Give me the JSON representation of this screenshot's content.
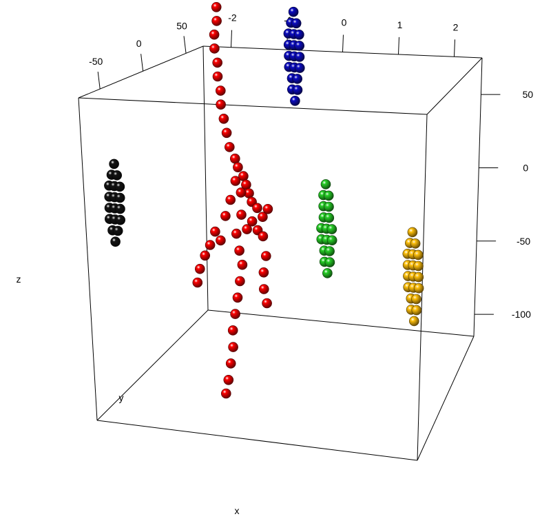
{
  "chart_data": {
    "type": "scatter",
    "dimensions": "3d",
    "title": "",
    "axes": {
      "x": {
        "label": "x",
        "ticks": [
          -2,
          -1,
          0,
          1,
          2
        ]
      },
      "y": {
        "label": "y",
        "ticks": [
          -50,
          0,
          50
        ]
      },
      "z": {
        "label": "z",
        "ticks": [
          50,
          0,
          -50,
          -100
        ]
      }
    },
    "grid": false,
    "legend": "none",
    "series": [
      {
        "color": "#dd0000",
        "shape": "sphere",
        "points": [
          [
            -1.9,
            47,
            118
          ],
          [
            -1.9,
            47,
            108
          ],
          [
            -1.95,
            47,
            98
          ],
          [
            -1.95,
            47,
            88
          ],
          [
            -1.9,
            47,
            78
          ],
          [
            -1.9,
            47,
            68
          ],
          [
            -1.85,
            47,
            58
          ],
          [
            -1.85,
            47,
            48
          ],
          [
            -1.8,
            47,
            38
          ],
          [
            -1.75,
            47,
            28
          ],
          [
            -1.7,
            47,
            18
          ],
          [
            -1.6,
            47,
            10
          ],
          [
            -1.55,
            47,
            4
          ],
          [
            -1.45,
            47,
            -2
          ],
          [
            -1.4,
            47,
            -8
          ],
          [
            -1.35,
            47,
            -14
          ],
          [
            -1.3,
            47,
            -20
          ],
          [
            -1.5,
            47,
            -14
          ],
          [
            -1.6,
            47,
            -6
          ],
          [
            -1.7,
            47,
            -20
          ],
          [
            -1.8,
            47,
            -32
          ],
          [
            -1.5,
            47,
            -30
          ],
          [
            -1.4,
            47,
            -40
          ],
          [
            -1.3,
            47,
            -34
          ],
          [
            -1.2,
            47,
            -24
          ],
          [
            -1.2,
            47,
            -40
          ],
          [
            -1.1,
            47,
            -30
          ],
          [
            -1.0,
            47,
            -24
          ],
          [
            -1.6,
            47,
            -44
          ],
          [
            -2.0,
            47,
            -44
          ],
          [
            -2.1,
            47,
            -54
          ],
          [
            -2.2,
            47,
            -62
          ],
          [
            -2.3,
            47,
            -72
          ],
          [
            -2.35,
            47,
            -82
          ],
          [
            -1.9,
            47,
            -50
          ],
          [
            -1.55,
            47,
            -56
          ],
          [
            -1.5,
            47,
            -66
          ],
          [
            -1.55,
            47,
            -78
          ],
          [
            -1.6,
            47,
            -90
          ],
          [
            -1.65,
            47,
            -102
          ],
          [
            -1.7,
            47,
            -114
          ],
          [
            -1.7,
            47,
            -126
          ],
          [
            -1.75,
            47,
            -138
          ],
          [
            -1.8,
            47,
            -150
          ],
          [
            -1.85,
            47,
            -160
          ],
          [
            -1.1,
            47,
            -44
          ],
          [
            -1.05,
            47,
            -58
          ],
          [
            -1.1,
            47,
            -70
          ],
          [
            -1.1,
            47,
            -82
          ],
          [
            -1.05,
            47,
            -92
          ]
        ]
      },
      {
        "color": "#0a0aa8",
        "shape": "sphere",
        "points": [
          [
            -0.45,
            47,
            120
          ],
          [
            -0.5,
            47,
            112
          ],
          [
            -0.4,
            47,
            112
          ],
          [
            -0.55,
            47,
            104
          ],
          [
            -0.45,
            47,
            104
          ],
          [
            -0.35,
            47,
            104
          ],
          [
            -0.55,
            47,
            96
          ],
          [
            -0.45,
            47,
            96
          ],
          [
            -0.35,
            47,
            96
          ],
          [
            -0.55,
            47,
            88
          ],
          [
            -0.45,
            47,
            88
          ],
          [
            -0.35,
            47,
            88
          ],
          [
            -0.55,
            47,
            80
          ],
          [
            -0.45,
            47,
            80
          ],
          [
            -0.35,
            47,
            80
          ],
          [
            -0.5,
            47,
            72
          ],
          [
            -0.4,
            47,
            72
          ],
          [
            -0.5,
            47,
            64
          ],
          [
            -0.4,
            47,
            64
          ],
          [
            -0.45,
            47,
            56
          ]
        ]
      },
      {
        "color": "#111111",
        "shape": "sphere",
        "points": [
          [
            -2.9,
            -20,
            38
          ],
          [
            -2.95,
            -20,
            30
          ],
          [
            -2.85,
            -20,
            30
          ],
          [
            -3.0,
            -20,
            22
          ],
          [
            -2.9,
            -20,
            22
          ],
          [
            -2.8,
            -20,
            22
          ],
          [
            -3.0,
            -20,
            14
          ],
          [
            -2.9,
            -20,
            14
          ],
          [
            -2.8,
            -20,
            14
          ],
          [
            -3.0,
            -20,
            6
          ],
          [
            -2.9,
            -20,
            6
          ],
          [
            -2.8,
            -20,
            6
          ],
          [
            -3.0,
            -20,
            -2
          ],
          [
            -2.9,
            -20,
            -2
          ],
          [
            -2.8,
            -20,
            -2
          ],
          [
            -2.95,
            -20,
            -10
          ],
          [
            -2.85,
            -20,
            -10
          ],
          [
            -2.9,
            -20,
            -18
          ]
        ]
      },
      {
        "color": "#22b422",
        "shape": "sphere",
        "points": [
          [
            0.1,
            47,
            -2
          ],
          [
            0.05,
            47,
            -10
          ],
          [
            0.15,
            47,
            -10
          ],
          [
            0.05,
            47,
            -18
          ],
          [
            0.15,
            47,
            -18
          ],
          [
            0.05,
            47,
            -26
          ],
          [
            0.15,
            47,
            -26
          ],
          [
            0.0,
            47,
            -34
          ],
          [
            0.1,
            47,
            -34
          ],
          [
            0.2,
            47,
            -34
          ],
          [
            0.0,
            47,
            -42
          ],
          [
            0.1,
            47,
            -42
          ],
          [
            0.2,
            47,
            -42
          ],
          [
            0.05,
            47,
            -50
          ],
          [
            0.15,
            47,
            -50
          ],
          [
            0.05,
            47,
            -58
          ],
          [
            0.15,
            47,
            -58
          ],
          [
            0.1,
            47,
            -66
          ]
        ]
      },
      {
        "color": "#e8a80a",
        "shape": "sphere",
        "points": [
          [
            2.7,
            -20,
            10
          ],
          [
            2.65,
            -20,
            2
          ],
          [
            2.75,
            -20,
            2
          ],
          [
            2.6,
            -20,
            -6
          ],
          [
            2.7,
            -20,
            -6
          ],
          [
            2.8,
            -20,
            -6
          ],
          [
            2.6,
            -20,
            -14
          ],
          [
            2.7,
            -20,
            -14
          ],
          [
            2.8,
            -20,
            -14
          ],
          [
            2.6,
            -20,
            -22
          ],
          [
            2.7,
            -20,
            -22
          ],
          [
            2.8,
            -20,
            -22
          ],
          [
            2.6,
            -20,
            -30
          ],
          [
            2.7,
            -20,
            -30
          ],
          [
            2.8,
            -20,
            -30
          ],
          [
            2.65,
            -20,
            -38
          ],
          [
            2.75,
            -20,
            -38
          ],
          [
            2.65,
            -20,
            -46
          ],
          [
            2.75,
            -20,
            -46
          ],
          [
            2.7,
            -20,
            -54
          ]
        ]
      }
    ]
  }
}
